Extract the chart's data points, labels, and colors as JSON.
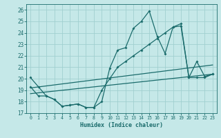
{
  "bg_color": "#c5e8e8",
  "line_color": "#1a6b6b",
  "grid_color": "#a0d0d0",
  "xlabel": "Humidex (Indice chaleur)",
  "xlim": [
    -0.5,
    23.5
  ],
  "ylim": [
    17,
    26.5
  ],
  "xticks": [
    0,
    1,
    2,
    3,
    4,
    5,
    6,
    7,
    8,
    9,
    10,
    11,
    12,
    13,
    14,
    15,
    16,
    17,
    18,
    19,
    20,
    21,
    22,
    23
  ],
  "yticks": [
    17,
    18,
    19,
    20,
    21,
    22,
    23,
    24,
    25,
    26
  ],
  "line1_x": [
    0,
    1,
    2,
    3,
    4,
    5,
    6,
    7,
    8,
    9,
    10,
    11,
    12,
    13,
    14,
    15,
    16,
    17,
    18,
    19,
    20,
    21,
    22,
    23
  ],
  "line1_y": [
    20.1,
    19.3,
    18.5,
    18.2,
    17.6,
    17.7,
    17.8,
    17.5,
    17.5,
    20.9,
    22.7,
    24.4,
    25.0,
    25.9,
    23.7,
    22.2,
    24.5,
    24.6,
    20.1,
    21.5,
    20.2,
    20.4
  ],
  "line1_x_real": [
    0,
    1,
    2,
    3,
    4,
    5,
    6,
    7,
    8,
    9,
    11,
    12,
    13,
    14,
    15,
    16,
    17,
    18,
    19,
    20,
    21,
    22
  ],
  "line2_x": [
    0,
    1,
    2,
    3,
    4,
    5,
    6,
    7,
    8,
    9,
    10,
    11,
    12,
    13,
    14,
    15,
    16,
    17,
    18,
    19,
    20,
    21,
    22,
    23
  ],
  "line2_y": [
    19.3,
    18.5,
    18.5,
    18.2,
    17.6,
    17.7,
    17.8,
    17.5,
    17.5,
    19.0,
    20.0,
    21.0,
    21.5,
    22.0,
    22.5,
    23.0,
    23.5,
    24.0,
    24.5,
    24.8,
    20.1,
    20.1,
    20.1,
    20.4
  ],
  "line3_x": [
    0,
    23
  ],
  "line3_y": [
    19.0,
    21.0
  ],
  "line4_x": [
    0,
    23
  ],
  "line4_y": [
    18.6,
    20.3
  ],
  "zigzag_x": [
    0,
    1,
    2,
    3,
    4,
    5,
    6,
    7,
    8,
    9,
    10,
    11,
    12,
    13,
    14,
    15,
    16,
    17,
    18,
    19,
    20,
    21,
    22,
    23
  ],
  "zigzag_y": [
    20.1,
    19.3,
    18.5,
    18.2,
    17.6,
    17.7,
    17.8,
    17.5,
    17.5,
    18.0,
    20.9,
    22.5,
    22.7,
    24.4,
    25.0,
    25.9,
    23.7,
    22.2,
    24.5,
    24.6,
    20.1,
    21.5,
    20.2,
    20.4
  ],
  "smooth_x": [
    0,
    1,
    2,
    3,
    4,
    5,
    6,
    7,
    8,
    9,
    10,
    11,
    12,
    13,
    14,
    15,
    16,
    17,
    18,
    19,
    20,
    21,
    22,
    23
  ],
  "smooth_y": [
    19.3,
    18.5,
    18.5,
    18.2,
    17.6,
    17.7,
    17.8,
    17.5,
    17.5,
    19.0,
    20.0,
    21.0,
    21.5,
    22.0,
    22.5,
    23.0,
    23.5,
    24.0,
    24.5,
    24.8,
    20.1,
    20.1,
    20.1,
    20.4
  ]
}
